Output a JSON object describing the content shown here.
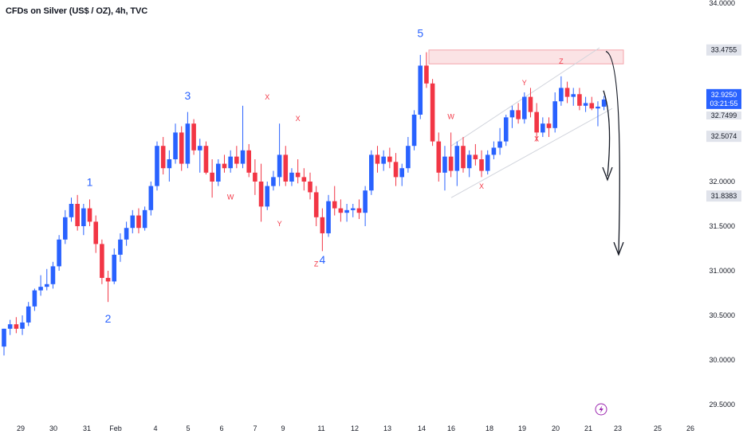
{
  "title": "CFDs on Silver (US$ / OZ), 4h, TVC",
  "colors": {
    "up": "#2962ff",
    "down": "#f23645",
    "zone_fill": "#fbe3e5",
    "zone_stroke": "#f4a3aa",
    "channel": "#d1d4dc",
    "arrow": "#131722"
  },
  "price_badges": [
    {
      "value": "33.4755",
      "style": "grey"
    },
    {
      "value": "32.9250",
      "style": "blue",
      "sub": "03:21:55"
    },
    {
      "value": "32.7499",
      "style": "grey-partial"
    },
    {
      "value": "32.5074",
      "style": "grey"
    },
    {
      "value": "31.8383",
      "style": "grey"
    }
  ],
  "alert_icon": "lightning-icon",
  "chart_data": {
    "type": "candlestick",
    "ylim": [
      29.5,
      34.0
    ],
    "y_ticks": [
      "29.5000",
      "30.0000",
      "30.5000",
      "31.0000",
      "31.5000",
      "32.0000",
      "32.5000",
      "33.0000",
      "33.5000",
      "34.0000"
    ],
    "x_ticks": [
      "29",
      "30",
      "31",
      "Feb",
      "4",
      "5",
      "6",
      "7",
      "9",
      "11",
      "12",
      "13",
      "14",
      "16",
      "18",
      "19",
      "20",
      "21",
      "23",
      "25",
      "26"
    ],
    "candles": [
      {
        "o": 30.15,
        "h": 30.35,
        "l": 30.05,
        "c": 30.35
      },
      {
        "o": 30.35,
        "h": 30.45,
        "l": 30.28,
        "c": 30.4
      },
      {
        "o": 30.4,
        "h": 30.48,
        "l": 30.3,
        "c": 30.35
      },
      {
        "o": 30.35,
        "h": 30.5,
        "l": 30.28,
        "c": 30.42
      },
      {
        "o": 30.42,
        "h": 30.65,
        "l": 30.38,
        "c": 30.6
      },
      {
        "o": 30.6,
        "h": 30.8,
        "l": 30.55,
        "c": 30.78
      },
      {
        "o": 30.78,
        "h": 30.95,
        "l": 30.72,
        "c": 30.82
      },
      {
        "o": 30.82,
        "h": 31.02,
        "l": 30.78,
        "c": 30.85
      },
      {
        "o": 30.85,
        "h": 31.1,
        "l": 30.8,
        "c": 31.05
      },
      {
        "o": 31.05,
        "h": 31.4,
        "l": 31.0,
        "c": 31.35
      },
      {
        "o": 31.35,
        "h": 31.68,
        "l": 31.3,
        "c": 31.6
      },
      {
        "o": 31.6,
        "h": 31.82,
        "l": 31.55,
        "c": 31.75
      },
      {
        "o": 31.75,
        "h": 31.85,
        "l": 31.45,
        "c": 31.5
      },
      {
        "o": 31.5,
        "h": 31.75,
        "l": 31.4,
        "c": 31.7
      },
      {
        "o": 31.7,
        "h": 31.8,
        "l": 31.5,
        "c": 31.55
      },
      {
        "o": 31.55,
        "h": 31.62,
        "l": 31.2,
        "c": 31.3
      },
      {
        "o": 31.3,
        "h": 31.35,
        "l": 30.85,
        "c": 30.92
      },
      {
        "o": 30.92,
        "h": 31.0,
        "l": 30.65,
        "c": 30.88
      },
      {
        "o": 30.88,
        "h": 31.25,
        "l": 30.85,
        "c": 31.18
      },
      {
        "o": 31.18,
        "h": 31.42,
        "l": 31.1,
        "c": 31.35
      },
      {
        "o": 31.35,
        "h": 31.55,
        "l": 31.28,
        "c": 31.48
      },
      {
        "o": 31.48,
        "h": 31.68,
        "l": 31.42,
        "c": 31.62
      },
      {
        "o": 31.62,
        "h": 31.7,
        "l": 31.42,
        "c": 31.48
      },
      {
        "o": 31.48,
        "h": 31.72,
        "l": 31.45,
        "c": 31.68
      },
      {
        "o": 31.68,
        "h": 32.0,
        "l": 31.62,
        "c": 31.95
      },
      {
        "o": 31.95,
        "h": 32.45,
        "l": 31.9,
        "c": 32.4
      },
      {
        "o": 32.4,
        "h": 32.5,
        "l": 32.08,
        "c": 32.15
      },
      {
        "o": 32.15,
        "h": 32.35,
        "l": 32.0,
        "c": 32.25
      },
      {
        "o": 32.25,
        "h": 32.65,
        "l": 32.2,
        "c": 32.55
      },
      {
        "o": 32.55,
        "h": 32.62,
        "l": 32.12,
        "c": 32.2
      },
      {
        "o": 32.2,
        "h": 32.78,
        "l": 32.15,
        "c": 32.65
      },
      {
        "o": 32.65,
        "h": 32.7,
        "l": 32.3,
        "c": 32.35
      },
      {
        "o": 32.35,
        "h": 32.48,
        "l": 32.1,
        "c": 32.4
      },
      {
        "o": 32.4,
        "h": 32.45,
        "l": 32.08,
        "c": 32.1
      },
      {
        "o": 32.1,
        "h": 32.25,
        "l": 31.82,
        "c": 32.0
      },
      {
        "o": 32.0,
        "h": 32.25,
        "l": 31.95,
        "c": 32.2
      },
      {
        "o": 32.2,
        "h": 32.3,
        "l": 32.1,
        "c": 32.15
      },
      {
        "o": 32.15,
        "h": 32.35,
        "l": 32.1,
        "c": 32.28
      },
      {
        "o": 32.28,
        "h": 32.4,
        "l": 32.15,
        "c": 32.2
      },
      {
        "o": 32.2,
        "h": 32.85,
        "l": 32.15,
        "c": 32.35
      },
      {
        "o": 32.35,
        "h": 32.42,
        "l": 32.05,
        "c": 32.1
      },
      {
        "o": 32.1,
        "h": 32.25,
        "l": 31.85,
        "c": 32.0
      },
      {
        "o": 32.0,
        "h": 32.2,
        "l": 31.55,
        "c": 31.72
      },
      {
        "o": 31.72,
        "h": 32.0,
        "l": 31.68,
        "c": 31.95
      },
      {
        "o": 31.95,
        "h": 32.12,
        "l": 31.9,
        "c": 32.05
      },
      {
        "o": 32.05,
        "h": 32.65,
        "l": 31.95,
        "c": 32.3
      },
      {
        "o": 32.3,
        "h": 32.4,
        "l": 31.95,
        "c": 32.0
      },
      {
        "o": 32.0,
        "h": 32.15,
        "l": 31.95,
        "c": 32.1
      },
      {
        "o": 32.1,
        "h": 32.25,
        "l": 31.98,
        "c": 32.05
      },
      {
        "o": 32.05,
        "h": 32.15,
        "l": 31.9,
        "c": 32.0
      },
      {
        "o": 32.0,
        "h": 32.1,
        "l": 31.8,
        "c": 31.88
      },
      {
        "o": 31.88,
        "h": 31.95,
        "l": 31.5,
        "c": 31.6
      },
      {
        "o": 31.6,
        "h": 31.7,
        "l": 31.22,
        "c": 31.42
      },
      {
        "o": 31.42,
        "h": 31.85,
        "l": 31.38,
        "c": 31.78
      },
      {
        "o": 31.78,
        "h": 31.95,
        "l": 31.62,
        "c": 31.7
      },
      {
        "o": 31.7,
        "h": 31.8,
        "l": 31.55,
        "c": 31.65
      },
      {
        "o": 31.65,
        "h": 31.75,
        "l": 31.55,
        "c": 31.68
      },
      {
        "o": 31.68,
        "h": 31.75,
        "l": 31.6,
        "c": 31.7
      },
      {
        "o": 31.7,
        "h": 31.8,
        "l": 31.58,
        "c": 31.65
      },
      {
        "o": 31.65,
        "h": 31.95,
        "l": 31.5,
        "c": 31.9
      },
      {
        "o": 31.9,
        "h": 32.35,
        "l": 31.85,
        "c": 32.3
      },
      {
        "o": 32.3,
        "h": 32.4,
        "l": 32.1,
        "c": 32.2
      },
      {
        "o": 32.2,
        "h": 32.35,
        "l": 32.12,
        "c": 32.28
      },
      {
        "o": 32.28,
        "h": 32.38,
        "l": 32.15,
        "c": 32.22
      },
      {
        "o": 32.22,
        "h": 32.32,
        "l": 31.95,
        "c": 32.05
      },
      {
        "o": 32.05,
        "h": 32.2,
        "l": 31.95,
        "c": 32.15
      },
      {
        "o": 32.15,
        "h": 32.5,
        "l": 32.1,
        "c": 32.4
      },
      {
        "o": 32.4,
        "h": 32.8,
        "l": 32.35,
        "c": 32.75
      },
      {
        "o": 32.75,
        "h": 33.42,
        "l": 32.7,
        "c": 33.3
      },
      {
        "o": 33.3,
        "h": 33.45,
        "l": 33.05,
        "c": 33.1
      },
      {
        "o": 33.1,
        "h": 33.15,
        "l": 32.4,
        "c": 32.45
      },
      {
        "o": 32.45,
        "h": 32.55,
        "l": 32.0,
        "c": 32.1
      },
      {
        "o": 32.1,
        "h": 32.4,
        "l": 31.9,
        "c": 32.28
      },
      {
        "o": 32.28,
        "h": 32.55,
        "l": 32.05,
        "c": 32.12
      },
      {
        "o": 32.12,
        "h": 32.45,
        "l": 31.95,
        "c": 32.4
      },
      {
        "o": 32.4,
        "h": 32.5,
        "l": 32.1,
        "c": 32.15
      },
      {
        "o": 32.15,
        "h": 32.35,
        "l": 32.05,
        "c": 32.3
      },
      {
        "o": 32.3,
        "h": 32.42,
        "l": 32.18,
        "c": 32.25
      },
      {
        "o": 32.25,
        "h": 32.35,
        "l": 32.05,
        "c": 32.12
      },
      {
        "o": 32.12,
        "h": 32.35,
        "l": 32.08,
        "c": 32.3
      },
      {
        "o": 32.3,
        "h": 32.45,
        "l": 32.25,
        "c": 32.38
      },
      {
        "o": 32.38,
        "h": 32.6,
        "l": 32.3,
        "c": 32.45
      },
      {
        "o": 32.45,
        "h": 32.75,
        "l": 32.4,
        "c": 32.72
      },
      {
        "o": 32.72,
        "h": 32.85,
        "l": 32.6,
        "c": 32.8
      },
      {
        "o": 32.8,
        "h": 32.88,
        "l": 32.65,
        "c": 32.7
      },
      {
        "o": 32.7,
        "h": 33.0,
        "l": 32.65,
        "c": 32.95
      },
      {
        "o": 32.95,
        "h": 33.05,
        "l": 32.72,
        "c": 32.78
      },
      {
        "o": 32.78,
        "h": 32.88,
        "l": 32.45,
        "c": 32.55
      },
      {
        "o": 32.55,
        "h": 32.72,
        "l": 32.5,
        "c": 32.65
      },
      {
        "o": 32.65,
        "h": 32.72,
        "l": 32.5,
        "c": 32.6
      },
      {
        "o": 32.6,
        "h": 33.0,
        "l": 32.55,
        "c": 32.9
      },
      {
        "o": 32.9,
        "h": 33.18,
        "l": 32.85,
        "c": 33.05
      },
      {
        "o": 33.05,
        "h": 33.12,
        "l": 32.88,
        "c": 32.95
      },
      {
        "o": 32.95,
        "h": 33.05,
        "l": 32.85,
        "c": 32.98
      },
      {
        "o": 32.98,
        "h": 33.05,
        "l": 32.8,
        "c": 32.85
      },
      {
        "o": 32.85,
        "h": 32.95,
        "l": 32.78,
        "c": 32.88
      },
      {
        "o": 32.88,
        "h": 32.95,
        "l": 32.8,
        "c": 32.82
      },
      {
        "o": 32.82,
        "h": 32.9,
        "l": 32.62,
        "c": 32.84
      },
      {
        "o": 32.84,
        "h": 32.96,
        "l": 32.8,
        "c": 32.92
      }
    ],
    "wave_labels": [
      {
        "text": "1",
        "i": 14,
        "y": 31.95,
        "color": "blue"
      },
      {
        "text": "2",
        "i": 17,
        "y": 30.42,
        "color": "blue"
      },
      {
        "text": "3",
        "i": 30,
        "y": 32.92,
        "color": "blue"
      },
      {
        "text": "4",
        "i": 52,
        "y": 31.08,
        "color": "blue"
      },
      {
        "text": "5",
        "i": 68,
        "y": 33.62,
        "color": "blue"
      },
      {
        "text": "X",
        "i": 43,
        "y": 32.92,
        "color": "red"
      },
      {
        "text": "W",
        "i": 37,
        "y": 31.8,
        "color": "red"
      },
      {
        "text": "X",
        "i": 48,
        "y": 32.68,
        "color": "red"
      },
      {
        "text": "Y",
        "i": 45,
        "y": 31.5,
        "color": "red"
      },
      {
        "text": "Z",
        "i": 51,
        "y": 31.05,
        "color": "red"
      },
      {
        "text": "W",
        "i": 73,
        "y": 32.7,
        "color": "red"
      },
      {
        "text": "X",
        "i": 78,
        "y": 31.92,
        "color": "red"
      },
      {
        "text": "Y",
        "i": 85,
        "y": 33.08,
        "color": "red"
      },
      {
        "text": "X",
        "i": 87,
        "y": 32.45,
        "color": "red"
      },
      {
        "text": "Z",
        "i": 91,
        "y": 33.32,
        "color": "red"
      }
    ]
  }
}
